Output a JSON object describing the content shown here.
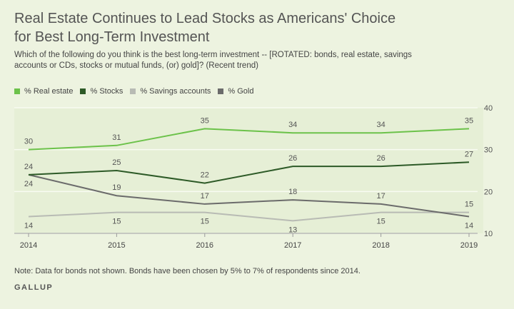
{
  "title": "Real Estate Continues to Lead Stocks as Americans' Choice for Best Long-Term Investment",
  "subtitle": "Which of the following do you think is the best long-term investment -- [ROTATED: bonds, real estate, savings accounts or CDs, stocks or mutual funds, (or) gold]? (Recent trend)",
  "note": "Note: Data for bonds not shown. Bonds have been chosen by 5% to 7% of respondents since 2014.",
  "brand": "GALLUP",
  "chart_data": {
    "type": "line",
    "x": [
      "2014",
      "2015",
      "2016",
      "2017",
      "2018",
      "2019"
    ],
    "ylim": [
      10,
      40
    ],
    "yticks": [
      10,
      20,
      30,
      40
    ],
    "grid": true,
    "legend_position": "top-left",
    "series": [
      {
        "name": "% Real estate",
        "color": "#6cc24a",
        "values": [
          30,
          31,
          35,
          34,
          34,
          35
        ]
      },
      {
        "name": "% Stocks",
        "color": "#2d5a27",
        "values": [
          24,
          25,
          22,
          26,
          26,
          27
        ]
      },
      {
        "name": "% Savings accounts",
        "color": "#b8bbb4",
        "values": [
          14,
          15,
          15,
          13,
          15,
          15
        ]
      },
      {
        "name": "% Gold",
        "color": "#6b6b6b",
        "values": [
          24,
          19,
          17,
          18,
          17,
          14
        ]
      }
    ]
  }
}
